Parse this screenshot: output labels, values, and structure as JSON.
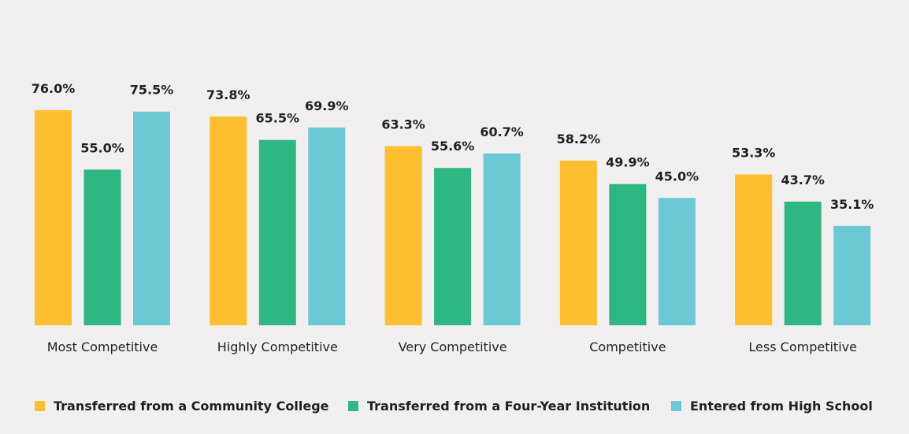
{
  "chart_data": {
    "type": "bar",
    "categories": [
      "Most Competitive",
      "Highly Competitive",
      "Very Competitive",
      "Competitive",
      "Less Competitive"
    ],
    "series": [
      {
        "name": "Transferred from a Community College",
        "color": "#fdbf2d",
        "values": [
          76.0,
          73.8,
          63.3,
          58.2,
          53.3
        ]
      },
      {
        "name": "Transferred from a Four-Year Institution",
        "color": "#2db783",
        "values": [
          55.0,
          65.5,
          55.6,
          49.9,
          43.7
        ]
      },
      {
        "name": "Entered from High School",
        "color": "#6bc9d3",
        "values": [
          75.5,
          69.9,
          60.7,
          45.0,
          35.1
        ]
      }
    ],
    "value_format": "%",
    "ylim": [
      0,
      100
    ],
    "grid": false,
    "legend_position": "bottom"
  }
}
